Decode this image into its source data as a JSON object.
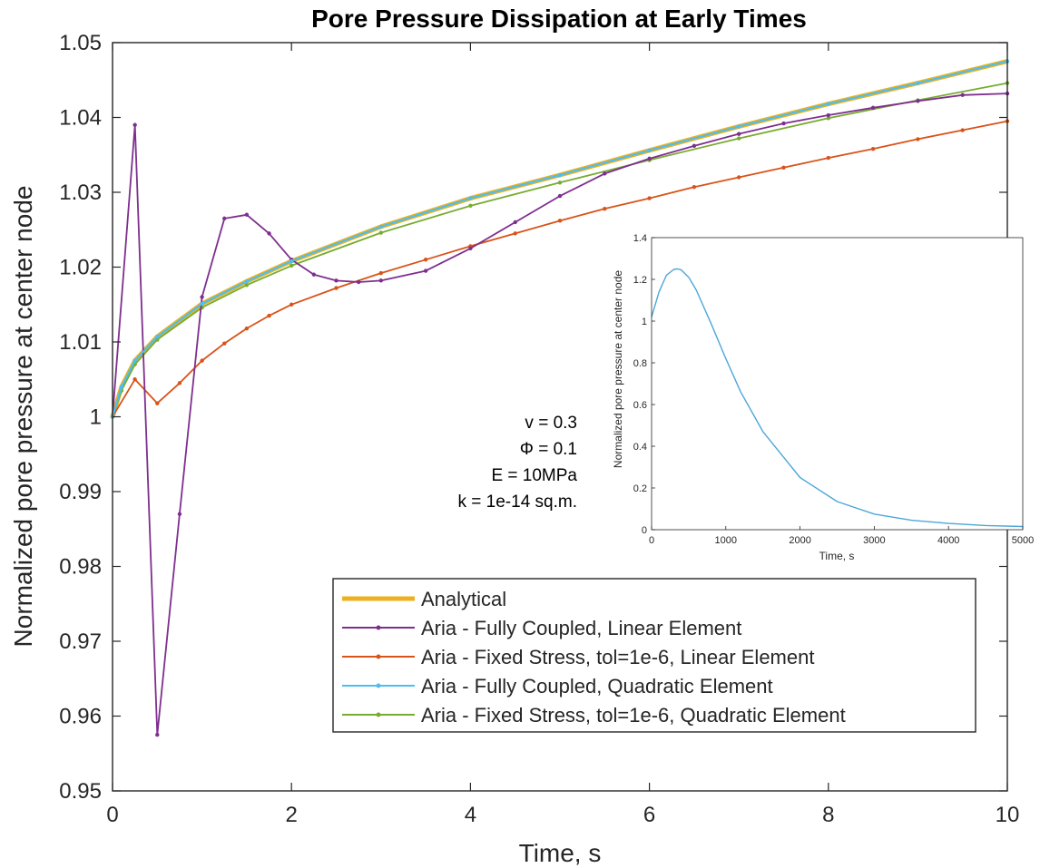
{
  "chart_data": [
    {
      "type": "line",
      "title": "Pore Pressure Dissipation at Early Times",
      "xlabel": "Time, s",
      "ylabel": "Normalized pore pressure at center node",
      "xlim": [
        0,
        10
      ],
      "ylim": [
        0.95,
        1.05
      ],
      "xticks": [
        "0",
        "2",
        "4",
        "6",
        "8",
        "10"
      ],
      "yticks": [
        "0.95",
        "0.96",
        "0.97",
        "0.98",
        "0.99",
        "1",
        "1.01",
        "1.02",
        "1.03",
        "1.04",
        "1.05"
      ],
      "grid": false,
      "legend_position": "bottom-right",
      "annotations": [
        "v = 0.3",
        "Φ = 0.1",
        "E = 10MPa",
        "k = 1e-14 sq.m."
      ],
      "series": [
        {
          "name": "Analytical",
          "color": "#EDB120",
          "marker": "none",
          "x": [
            0,
            0.1,
            0.25,
            0.5,
            1,
            1.5,
            2,
            3,
            4,
            5,
            6,
            7,
            8,
            9,
            10
          ],
          "y": [
            1.0,
            1.004,
            1.0075,
            1.0107,
            1.0151,
            1.0181,
            1.0208,
            1.0254,
            1.0292,
            1.0323,
            1.0356,
            1.0388,
            1.0418,
            1.0446,
            1.0475
          ]
        },
        {
          "name": "Aria - Fully Coupled, Linear Element",
          "color": "#7E2F8E",
          "marker": "dot",
          "x": [
            0,
            0.25,
            0.5,
            0.75,
            1.0,
            1.25,
            1.5,
            1.75,
            2.0,
            2.25,
            2.5,
            2.75,
            3.0,
            3.5,
            4.0,
            4.5,
            5.0,
            5.5,
            6.0,
            6.5,
            7.0,
            7.5,
            8.0,
            8.5,
            9.0,
            9.5,
            10.0
          ],
          "y": [
            1.0,
            1.039,
            0.9575,
            0.987,
            1.016,
            1.0265,
            1.027,
            1.0245,
            1.021,
            1.019,
            1.0182,
            1.018,
            1.0182,
            1.0195,
            1.0225,
            1.026,
            1.0295,
            1.0325,
            1.0345,
            1.0362,
            1.0378,
            1.0392,
            1.0403,
            1.0413,
            1.0422,
            1.043,
            1.0432
          ]
        },
        {
          "name": "Aria - Fixed Stress, tol=1e-6, Linear Element",
          "color": "#D95319",
          "marker": "dot",
          "x": [
            0,
            0.25,
            0.5,
            0.75,
            1.0,
            1.25,
            1.5,
            1.75,
            2.0,
            2.5,
            3.0,
            3.5,
            4.0,
            4.5,
            5.0,
            5.5,
            6.0,
            6.5,
            7.0,
            7.5,
            8.0,
            8.5,
            9.0,
            9.5,
            10.0
          ],
          "y": [
            1.0,
            1.005,
            1.0018,
            1.0045,
            1.0075,
            1.0098,
            1.0118,
            1.0135,
            1.015,
            1.0172,
            1.0192,
            1.021,
            1.0228,
            1.0245,
            1.0262,
            1.0278,
            1.0292,
            1.0307,
            1.032,
            1.0333,
            1.0346,
            1.0358,
            1.0371,
            1.0383,
            1.0395
          ]
        },
        {
          "name": "Aria - Fully Coupled, Quadratic Element",
          "color": "#4DBEEE",
          "marker": "dot",
          "x": [
            0,
            0.1,
            0.25,
            0.5,
            1,
            1.5,
            2,
            3,
            4,
            5,
            6,
            7,
            8,
            9,
            10
          ],
          "y": [
            1.0,
            1.004,
            1.0075,
            1.0107,
            1.0151,
            1.0181,
            1.0208,
            1.0254,
            1.0292,
            1.0323,
            1.0356,
            1.0388,
            1.0418,
            1.0446,
            1.0475
          ]
        },
        {
          "name": "Aria - Fixed Stress, tol=1e-6, Quadratic Element",
          "color": "#77AC30",
          "marker": "dot",
          "x": [
            0,
            0.1,
            0.25,
            0.5,
            1,
            1.5,
            2,
            3,
            4,
            5,
            6,
            7,
            8,
            9,
            10
          ],
          "y": [
            1.0,
            1.0035,
            1.007,
            1.0103,
            1.0146,
            1.0176,
            1.0202,
            1.0246,
            1.0282,
            1.0313,
            1.0343,
            1.0372,
            1.0399,
            1.0423,
            1.0446
          ]
        }
      ]
    },
    {
      "type": "line",
      "title": "",
      "xlabel": "Time, s",
      "ylabel": "Normalized pore pressure at center node",
      "xlim": [
        0,
        5000
      ],
      "ylim": [
        0,
        1.4
      ],
      "xticks": [
        "0",
        "1000",
        "2000",
        "3000",
        "4000",
        "5000"
      ],
      "yticks": [
        "0",
        "0.2",
        "0.4",
        "0.6",
        "0.8",
        "1",
        "1.2",
        "1.4"
      ],
      "series": [
        {
          "color": "#4DA6D9",
          "x": [
            0,
            100,
            200,
            300,
            350,
            400,
            500,
            600,
            800,
            1000,
            1200,
            1500,
            2000,
            2500,
            3000,
            3500,
            4000,
            4500,
            5000
          ],
          "y": [
            1.02,
            1.14,
            1.22,
            1.248,
            1.25,
            1.245,
            1.21,
            1.15,
            0.99,
            0.82,
            0.66,
            0.47,
            0.25,
            0.135,
            0.075,
            0.045,
            0.03,
            0.02,
            0.015
          ]
        }
      ]
    }
  ]
}
